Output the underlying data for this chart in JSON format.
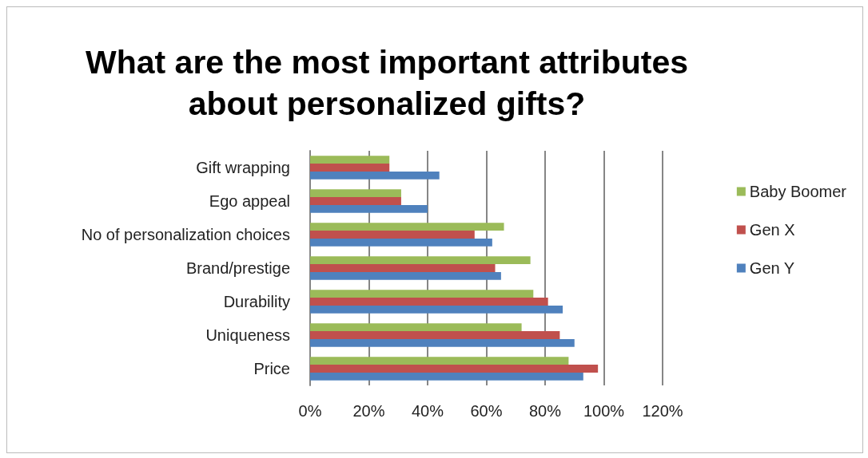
{
  "chart_data": {
    "type": "bar",
    "orientation": "horizontal",
    "title": "What are the most important attributes\nabout personalized gifts?",
    "categories": [
      "Gift wrapping",
      "Ego appeal",
      "No of personalization choices",
      "Brand/prestige",
      "Durability",
      "Uniqueness",
      "Price"
    ],
    "series": [
      {
        "name": "Baby Boomer",
        "color": "#9bbb59",
        "values": [
          27,
          31,
          66,
          75,
          76,
          72,
          88
        ]
      },
      {
        "name": "Gen X",
        "color": "#c0504d",
        "values": [
          27,
          31,
          56,
          63,
          81,
          85,
          98
        ]
      },
      {
        "name": "Gen Y",
        "color": "#4f81bd",
        "values": [
          44,
          40,
          62,
          65,
          86,
          90,
          93
        ]
      }
    ],
    "xlim": [
      0,
      120
    ],
    "xticks": [
      {
        "value": 0,
        "label": "0%"
      },
      {
        "value": 20,
        "label": "20%"
      },
      {
        "value": 40,
        "label": "40%"
      },
      {
        "value": 60,
        "label": "60%"
      },
      {
        "value": 80,
        "label": "80%"
      },
      {
        "value": 100,
        "label": "100%"
      },
      {
        "value": 120,
        "label": "120%"
      }
    ],
    "grid": "x",
    "legend": "right"
  }
}
